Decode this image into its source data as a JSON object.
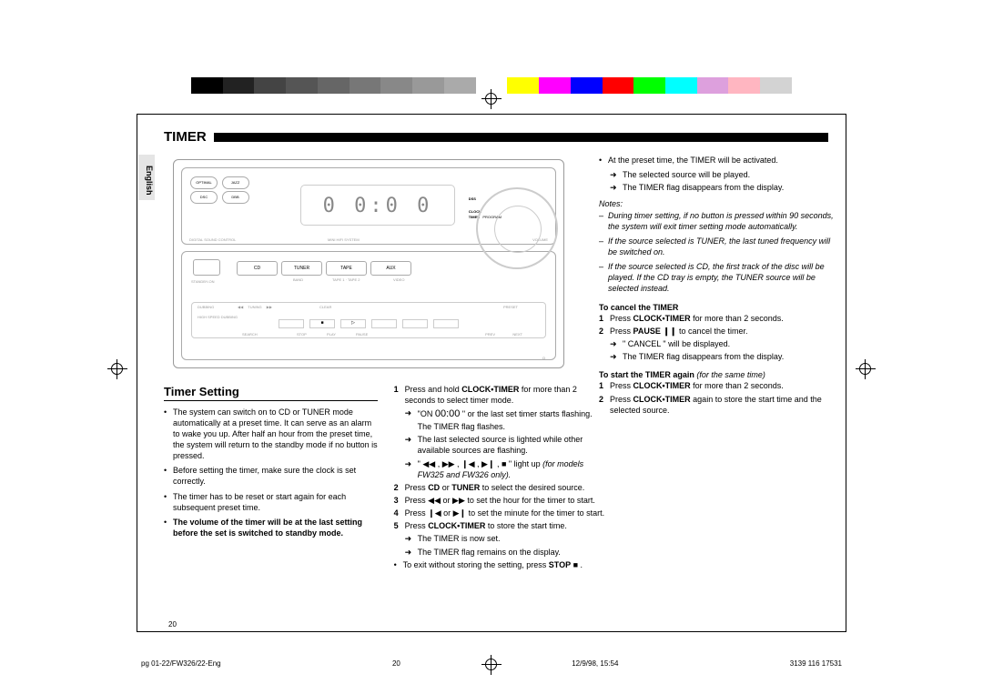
{
  "colorbar_colors": [
    "#000",
    "#222",
    "#444",
    "#555",
    "#666",
    "#777",
    "#888",
    "#999",
    "#aaa",
    "#fff",
    "#ffff00",
    "#ff00ff",
    "#0000ff",
    "#ff0000",
    "#00ff00",
    "#00ffff",
    "#dda0dd",
    "#ffb6c1",
    "#d3d3d3"
  ],
  "lang_tab": "English",
  "title": "TIMER",
  "section_heading": "Timer Setting",
  "diagram": {
    "digits": "0 0:0 0",
    "btn_dsc": "DSC",
    "btn_dbb": "DBB",
    "btn_optim": "OPTIMAL",
    "btn_jazz": "JAZZ",
    "src_cd": "CD",
    "src_tuner": "TUNER",
    "src_tape": "TAPE",
    "src_aux": "AUX",
    "sub_band": "BAND",
    "sub_tape12": "TAPE 1 · TAPE 2",
    "sub_video": "VIDEO",
    "lbl_dsc_ctrl": "DIGITAL SOUND CONTROL",
    "lbl_sys": "MINI HIFI SYSTEM",
    "lbl_vol": "VOLUME",
    "lbl_standby": "STANDBY-ON",
    "lbl_dss": "DSS",
    "lcd_clock": "CLOCK",
    "lcd_timer": "TIMER",
    "lcd_program": "PROGRAM",
    "ctl_dubbing": "DUBBING",
    "ctl_hsd": "HIGH SPEED DUBBING",
    "t_rew": "◀◀",
    "t_tuning": "TUNING",
    "t_fwd": "▶▶",
    "t_stop_l": "STOP",
    "t_play_l": "PLAY",
    "t_clear": "CLEAR",
    "t_pause_l": "PAUSE",
    "t_preset": "PRESET",
    "t_prev": "PREV",
    "t_next": "NEXT",
    "t_search": "SEARCH"
  },
  "col1": {
    "b1": "The system can switch on to CD or TUNER mode automatically at a preset time. It can serve as an alarm to wake you up. After half an hour from the preset time, the system will return to the standby mode if no button is pressed.",
    "b2": "Before setting the timer, make sure the clock is set correctly.",
    "b3": "The timer has to be reset or start again for each subsequent preset time.",
    "b4": "The volume of the timer will be at the last setting before the set is switched to standby mode."
  },
  "col2": {
    "s1a": "Press and hold ",
    "s1b": "CLOCK•TIMER",
    "s1c": " for more than 2 seconds to select timer mode.",
    "s1_ar1a": "\"ON ",
    "s1_ar1b": "00:00",
    "s1_ar1c": " \" or the last set timer starts flashing. The TIMER flag flashes.",
    "s1_ar2": "The last selected source is lighted while other available sources are flashing.",
    "s1_ar3a": "\" ◀◀ , ▶▶ , ❙◀ , ▶❙ , ■ \" light up ",
    "s1_ar3b": "(for models FW325 and FW326 only).",
    "s2a": "Press ",
    "s2b": "CD",
    "s2c": " or ",
    "s2d": "TUNER",
    "s2e": " to select the desired source.",
    "s3a": "Press ◀◀ or ▶▶ to set the hour for the timer to start.",
    "s4": "Press ❙◀ or ▶❙ to set the minute for the timer to start.",
    "s5a": "Press ",
    "s5b": "CLOCK•TIMER",
    "s5c": " to store the start time.",
    "s5_ar1": "The TIMER is now set.",
    "s5_ar2": "The TIMER flag remains on the display.",
    "exit_a": "To exit without storing the setting, press ",
    "exit_b": "STOP",
    "exit_c": " ■ ."
  },
  "col3_top": {
    "b1": "At the preset time, the TIMER will be activated.",
    "b1_ar1": "The selected source will be played.",
    "b1_ar2": "The TIMER flag disappears from the display.",
    "notes_h": "Notes:",
    "n1": "During timer setting, if no button is pressed within 90 seconds, the system will exit timer setting mode automatically.",
    "n2": "If the source selected is TUNER, the last tuned frequency will be switched on.",
    "n3": "If the source selected is CD, the first track of the disc will be played. If the CD tray is empty, the TUNER source will be selected instead."
  },
  "col3_bot": {
    "cancel_h": "To cancel the TIMER",
    "c1a": "Press ",
    "c1b": "CLOCK•TIMER",
    "c1c": " for more than 2 seconds.",
    "c2a": "Press ",
    "c2b": "PAUSE ❙❙",
    "c2c": " to cancel the timer.",
    "c2_ar1": "\" CANCEL \" will be displayed.",
    "c2_ar2": "The TIMER flag disappears from the display.",
    "restart_ha": "To start the TIMER again ",
    "restart_hb": "(for the same time)",
    "r1a": "Press ",
    "r1b": "CLOCK•TIMER",
    "r1c": " for more than 2 seconds.",
    "r2a": "Press ",
    "r2b": "CLOCK•TIMER",
    "r2c": " again to store the start time and the selected source."
  },
  "page_number": "20",
  "footer_left": "pg 01-22/FW326/22-Eng",
  "footer_center": "20",
  "footer_date": "12/9/98, 15:54",
  "footer_right": "3139 116 17531"
}
